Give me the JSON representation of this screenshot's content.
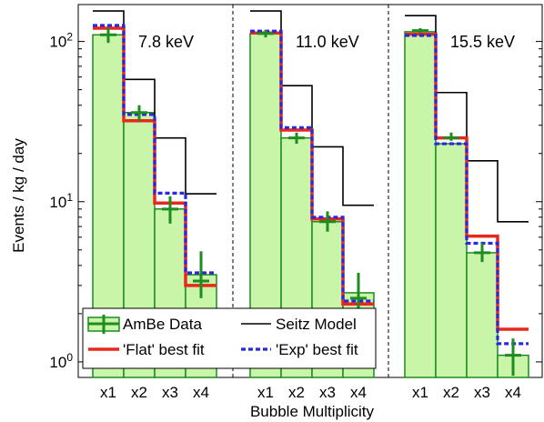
{
  "chart_data": {
    "type": "bar",
    "ylabel": "Events / kg / day",
    "xlabel": "Bubble Multiplicity",
    "yscale": "log",
    "ylim": [
      0.8,
      170
    ],
    "y_ticks": [
      {
        "value": 1,
        "mantissa": "10",
        "exp": "0"
      },
      {
        "value": 10,
        "mantissa": "10",
        "exp": "1"
      },
      {
        "value": 100,
        "mantissa": "10",
        "exp": "2"
      }
    ],
    "categories": [
      "x1",
      "x2",
      "x3",
      "x4"
    ],
    "legend": {
      "placement": "bottom-left",
      "entries": [
        "AmBe Data",
        "Seitz Model",
        "'Flat' best fit",
        "'Exp' best fit"
      ]
    },
    "colors": {
      "data_fill": "#c8f5a8",
      "data_edge": "#1e8c1e",
      "seitz": "#000000",
      "flat": "#e8281c",
      "exp": "#2828e0"
    },
    "panels": [
      {
        "label": "7.8 keV",
        "ambe": [
          110,
          36,
          9,
          3.2
        ],
        "ambe_err_low": [
          98,
          32,
          7.3,
          2.5
        ],
        "ambe_err_high": [
          122,
          40,
          10.8,
          4.9
        ],
        "ambe_bar": [
          110,
          36,
          9,
          3.5
        ],
        "seitz": [
          155,
          58,
          25,
          11.2
        ],
        "flat": [
          121,
          32,
          9.8,
          3.0
        ],
        "exp": [
          126,
          35,
          11.3,
          3.6
        ]
      },
      {
        "label": "11.0 keV",
        "ambe": [
          112,
          25,
          7.5,
          2.5
        ],
        "ambe_err_low": [
          106,
          23,
          6.5,
          2.0
        ],
        "ambe_err_high": [
          118,
          27,
          8.7,
          3.6
        ],
        "ambe_bar": [
          112,
          25,
          7.5,
          2.7
        ],
        "seitz": [
          155,
          53,
          22,
          9.5
        ],
        "flat": [
          113,
          28,
          7.8,
          2.3
        ],
        "exp": [
          116,
          29,
          8.0,
          2.4
        ]
      },
      {
        "label": "15.5 keV",
        "ambe": [
          117,
          25,
          4.8,
          1.1
        ],
        "ambe_err_low": [
          113,
          24,
          4.2,
          0.82
        ],
        "ambe_err_high": [
          121,
          27,
          5.5,
          1.4
        ],
        "ambe_bar": [
          115,
          23,
          4.8,
          1.1
        ],
        "seitz": [
          145,
          48,
          18,
          7.5
        ],
        "flat": [
          111,
          25,
          6.1,
          1.6
        ],
        "exp": [
          109,
          23,
          5.5,
          1.3
        ]
      }
    ]
  }
}
